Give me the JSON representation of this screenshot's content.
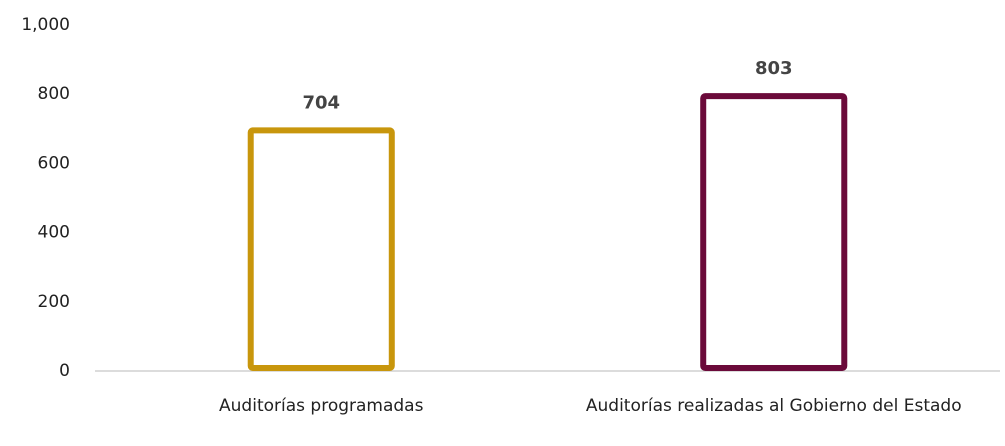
{
  "chart_data": {
    "type": "bar",
    "categories": [
      "Auditorías programadas",
      "Auditorías realizadas al Gobierno del Estado"
    ],
    "values": [
      704,
      803
    ],
    "colors": [
      "#c8960c",
      "#6b0a3a"
    ],
    "ylim": [
      0,
      1000
    ],
    "yticks": [
      0,
      200,
      400,
      600,
      800,
      {
        "value": 1000,
        "label": "1,000"
      }
    ],
    "grid": false
  }
}
